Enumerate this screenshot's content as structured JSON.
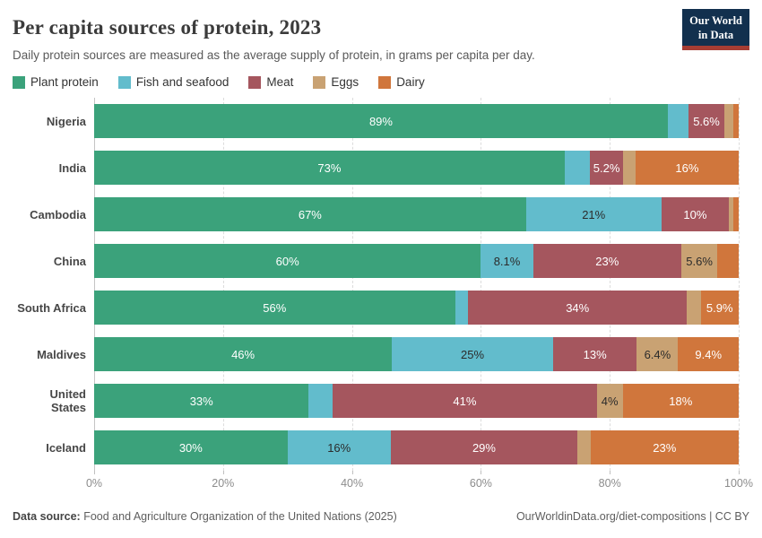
{
  "header": {
    "title": "Per capita sources of protein, 2023",
    "subtitle": "Daily protein sources are measured as the average supply of protein, in grams per capita per day.",
    "logo": {
      "line1": "Our World",
      "line2": "in Data",
      "bg_color": "#12304e",
      "accent_color": "#a63d33"
    }
  },
  "chart_data": {
    "type": "bar",
    "stacked": true,
    "orientation": "horizontal",
    "title": "Per capita sources of protein, 2023",
    "unit": "%",
    "xlim": [
      0,
      100
    ],
    "x_ticks": [
      "0%",
      "20%",
      "40%",
      "60%",
      "80%",
      "100%"
    ],
    "grid": true,
    "legend_position": "top",
    "series": [
      {
        "name": "Plant protein",
        "color": "#3ba27b",
        "label_text_color": "#ffffff"
      },
      {
        "name": "Fish and seafood",
        "color": "#62bccc",
        "label_text_color": "#2b2b2b"
      },
      {
        "name": "Meat",
        "color": "#a5565e",
        "label_text_color": "#ffffff"
      },
      {
        "name": "Eggs",
        "color": "#c9a273",
        "label_text_color": "#2b2b2b"
      },
      {
        "name": "Dairy",
        "color": "#d0763c",
        "label_text_color": "#ffffff"
      }
    ],
    "categories": [
      "Nigeria",
      "India",
      "Cambodia",
      "China",
      "South Africa",
      "Maldives",
      "United States",
      "Iceland"
    ],
    "rows": [
      {
        "country": "Nigeria",
        "values": [
          {
            "series": "Plant protein",
            "pct": 89,
            "label": "89%"
          },
          {
            "series": "Fish and seafood",
            "pct": 3.2,
            "label": null
          },
          {
            "series": "Meat",
            "pct": 5.6,
            "label": "5.6%"
          },
          {
            "series": "Eggs",
            "pct": 1.4,
            "label": null
          },
          {
            "series": "Dairy",
            "pct": 0.8,
            "label": null
          }
        ]
      },
      {
        "country": "India",
        "values": [
          {
            "series": "Plant protein",
            "pct": 73,
            "label": "73%"
          },
          {
            "series": "Fish and seafood",
            "pct": 3.9,
            "label": null
          },
          {
            "series": "Meat",
            "pct": 5.2,
            "label": "5.2%"
          },
          {
            "series": "Eggs",
            "pct": 1.9,
            "label": null
          },
          {
            "series": "Dairy",
            "pct": 16,
            "label": "16%"
          }
        ]
      },
      {
        "country": "Cambodia",
        "values": [
          {
            "series": "Plant protein",
            "pct": 67,
            "label": "67%"
          },
          {
            "series": "Fish and seafood",
            "pct": 21,
            "label": "21%"
          },
          {
            "series": "Meat",
            "pct": 10.5,
            "label": "10%"
          },
          {
            "series": "Eggs",
            "pct": 0.6,
            "label": null
          },
          {
            "series": "Dairy",
            "pct": 0.9,
            "label": null
          }
        ]
      },
      {
        "country": "China",
        "values": [
          {
            "series": "Plant protein",
            "pct": 60,
            "label": "60%"
          },
          {
            "series": "Fish and seafood",
            "pct": 8.1,
            "label": "8.1%"
          },
          {
            "series": "Meat",
            "pct": 23,
            "label": "23%"
          },
          {
            "series": "Eggs",
            "pct": 5.6,
            "label": "5.6%"
          },
          {
            "series": "Dairy",
            "pct": 3.3,
            "label": null
          }
        ]
      },
      {
        "country": "South Africa",
        "values": [
          {
            "series": "Plant protein",
            "pct": 56,
            "label": "56%"
          },
          {
            "series": "Fish and seafood",
            "pct": 2.0,
            "label": null
          },
          {
            "series": "Meat",
            "pct": 34,
            "label": "34%"
          },
          {
            "series": "Eggs",
            "pct": 2.1,
            "label": null
          },
          {
            "series": "Dairy",
            "pct": 5.9,
            "label": "5.9%"
          }
        ]
      },
      {
        "country": "Maldives",
        "values": [
          {
            "series": "Plant protein",
            "pct": 46.2,
            "label": "46%"
          },
          {
            "series": "Fish and seafood",
            "pct": 25,
            "label": "25%"
          },
          {
            "series": "Meat",
            "pct": 13,
            "label": "13%"
          },
          {
            "series": "Eggs",
            "pct": 6.4,
            "label": "6.4%"
          },
          {
            "series": "Dairy",
            "pct": 9.4,
            "label": "9.4%"
          }
        ]
      },
      {
        "country": "United States",
        "values": [
          {
            "series": "Plant protein",
            "pct": 33.3,
            "label": "33%"
          },
          {
            "series": "Fish and seafood",
            "pct": 3.7,
            "label": null
          },
          {
            "series": "Meat",
            "pct": 41,
            "label": "41%"
          },
          {
            "series": "Eggs",
            "pct": 4,
            "label": "4%"
          },
          {
            "series": "Dairy",
            "pct": 18,
            "label": "18%"
          }
        ]
      },
      {
        "country": "Iceland",
        "values": [
          {
            "series": "Plant protein",
            "pct": 30,
            "label": "30%"
          },
          {
            "series": "Fish and seafood",
            "pct": 16,
            "label": "16%"
          },
          {
            "series": "Meat",
            "pct": 29,
            "label": "29%"
          },
          {
            "series": "Eggs",
            "pct": 2.0,
            "label": null
          },
          {
            "series": "Dairy",
            "pct": 23,
            "label": "23%"
          }
        ]
      }
    ]
  },
  "footer": {
    "source_label": "Data source:",
    "source_text": "Food and Agriculture Organization of the United Nations (2025)",
    "attribution": "OurWorldinData.org/diet-compositions | CC BY"
  }
}
